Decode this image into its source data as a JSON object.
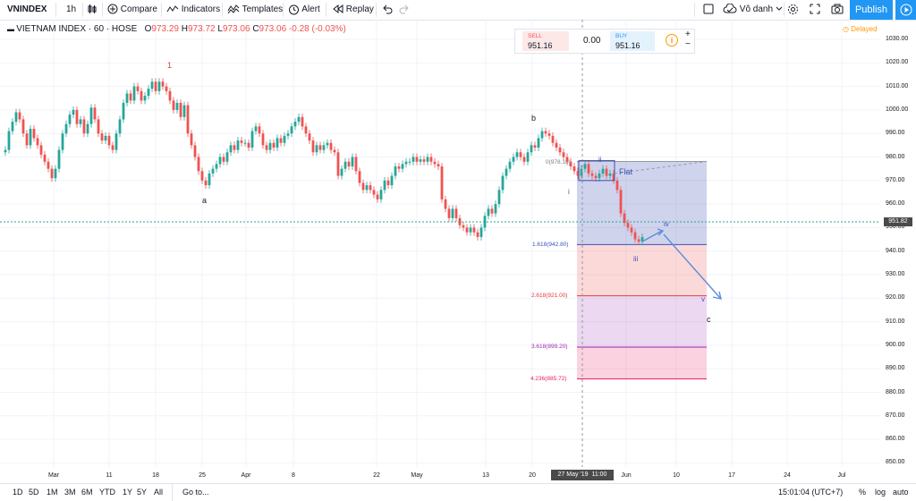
{
  "toolbar": {
    "symbol": "VNINDEX",
    "interval": "1h",
    "compare": "Compare",
    "indicators": "Indicators",
    "templates": "Templates",
    "alert": "Alert",
    "replay": "Replay",
    "layout_name": "Vô danh",
    "publish": "Publish",
    "icons": [
      "bar-style-icon",
      "compare-plus-icon",
      "indicators-icon",
      "templates-icon",
      "alert-clock-icon",
      "replay-icon",
      "undo-icon",
      "redo-icon",
      "square-icon",
      "cloud-icon",
      "settings-icon",
      "fullscreen-icon",
      "camera-icon",
      "play-icon"
    ]
  },
  "legend": {
    "title": "VIETNAM INDEX · 60 · HOSE",
    "open_label": "O",
    "open": "973.29",
    "high_label": "H",
    "high": "973.72",
    "low_label": "L",
    "low": "973.06",
    "close_label": "C",
    "close": "973.06",
    "change": "-0.28 (-0.03%)",
    "delayed": "Delayed"
  },
  "trade": {
    "sell_label": "SELL",
    "sell_price": "951.16",
    "spread": "0.00",
    "buy_label": "BUY",
    "buy_price": "951.16"
  },
  "price_axis": {
    "ticks": [
      "1030.00",
      "1020.00",
      "1010.00",
      "1000.00",
      "990.00",
      "980.00",
      "970.00",
      "960.00",
      "950.00",
      "940.00",
      "930.00",
      "920.00",
      "910.00",
      "900.00",
      "890.00",
      "880.00",
      "870.00",
      "860.00",
      "850.00"
    ],
    "last_price": "951.82"
  },
  "time_axis": {
    "ticks": [
      "Mar",
      "11",
      "18",
      "25",
      "Apr",
      "8",
      "22",
      "May",
      "13",
      "20",
      "Jun",
      "10",
      "17",
      "24",
      "Jul"
    ],
    "crosshair_date": "27 May '19",
    "crosshair_time": "11:00"
  },
  "annotations": {
    "wave_1": "1",
    "wave_a": "a",
    "wave_b": "b",
    "wave_i": "i",
    "wave_ii": "ii",
    "flat": "Flat",
    "wave_iii": "iii",
    "wave_iv": "iv",
    "wave_v": "v",
    "wave_c": "c",
    "fib_0": "0(978.10)",
    "fib_1618": "1.618(942.80)",
    "fib_2618": "2.618(921.00)",
    "fib_3618": "3.618(899.20)",
    "fib_4236": "4.236(885.72)"
  },
  "colors": {
    "up": "#26a69a",
    "down": "#ef5350",
    "accent": "#2196f3",
    "fib_blue": "#3f51b5",
    "fib_red": "#e53935",
    "fib_purple": "#9c27b0",
    "fib_pink": "#e91e63"
  },
  "bottom": {
    "ranges": [
      "1D",
      "5D",
      "1M",
      "3M",
      "6M",
      "YTD",
      "1Y",
      "5Y",
      "All"
    ],
    "goto": "Go to...",
    "clock": "15:01:04 (UTC+7)",
    "percent": "%",
    "log": "log",
    "auto": "auto"
  }
}
